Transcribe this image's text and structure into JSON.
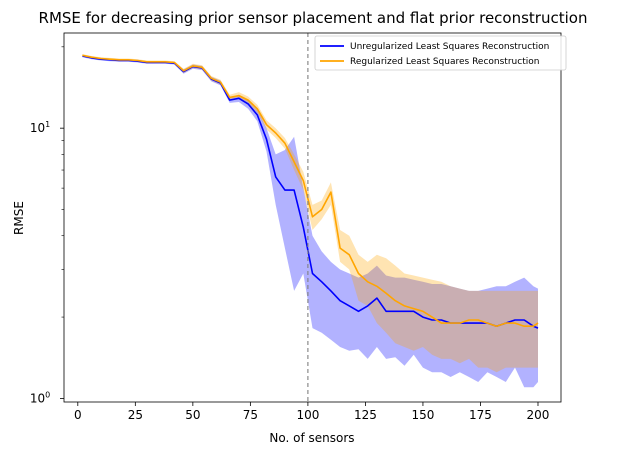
{
  "chart_data": {
    "type": "line",
    "title": "RMSE for decreasing prior sensor placement and flat prior reconstruction",
    "xlabel": "No. of sensors",
    "ylabel": "RMSE",
    "xlim": [
      -6,
      210
    ],
    "ylim": [
      0.97,
      22.5
    ],
    "yscale": "log",
    "x_ticks": [
      0,
      25,
      50,
      75,
      100,
      125,
      150,
      175,
      200
    ],
    "y_ticks": [
      {
        "value": 1,
        "label": "10",
        "exp": "0"
      },
      {
        "value": 10,
        "label": "10",
        "exp": "1"
      }
    ],
    "y_minor_ticks": [
      2,
      3,
      4,
      5,
      6,
      7,
      8,
      9,
      20
    ],
    "vline": {
      "x": 100,
      "color": "#808080",
      "style": "dashed"
    },
    "grid": false,
    "legend_position": "upper-right",
    "x": [
      2,
      6,
      10,
      14,
      18,
      22,
      26,
      30,
      34,
      38,
      42,
      46,
      50,
      54,
      58,
      62,
      66,
      70,
      74,
      78,
      82,
      86,
      90,
      94,
      98,
      102,
      106,
      110,
      114,
      118,
      122,
      126,
      130,
      134,
      138,
      142,
      146,
      150,
      154,
      158,
      162,
      166,
      170,
      174,
      178,
      182,
      186,
      190,
      194,
      198,
      200
    ],
    "series": [
      {
        "name": "Unregularized Least Squares Reconstruction",
        "color": "#0000ff",
        "values": [
          18.5,
          18.2,
          18.0,
          17.9,
          17.8,
          17.8,
          17.7,
          17.5,
          17.5,
          17.5,
          17.4,
          16.2,
          16.9,
          16.7,
          15.2,
          14.7,
          12.7,
          12.9,
          12.3,
          11.2,
          9.1,
          6.6,
          5.9,
          5.9,
          4.3,
          2.9,
          2.7,
          2.5,
          2.3,
          2.2,
          2.1,
          2.2,
          2.35,
          2.1,
          2.1,
          2.1,
          2.1,
          2.0,
          1.95,
          1.95,
          1.9,
          1.9,
          1.9,
          1.9,
          1.9,
          1.85,
          1.9,
          1.95,
          1.95,
          1.85,
          1.82
        ],
        "lower": [
          18.3,
          18.0,
          17.8,
          17.7,
          17.6,
          17.6,
          17.5,
          17.3,
          17.3,
          17.3,
          17.2,
          15.9,
          16.6,
          16.4,
          14.9,
          14.4,
          12.4,
          12.5,
          11.8,
          10.6,
          8.2,
          5.2,
          3.6,
          2.5,
          2.9,
          1.82,
          1.75,
          1.65,
          1.55,
          1.5,
          1.52,
          1.4,
          1.55,
          1.4,
          1.42,
          1.32,
          1.45,
          1.3,
          1.25,
          1.25,
          1.2,
          1.25,
          1.2,
          1.15,
          1.25,
          1.2,
          1.15,
          1.3,
          1.1,
          1.1,
          1.15
        ],
        "upper": [
          18.7,
          18.4,
          18.2,
          18.1,
          18.0,
          18.0,
          17.9,
          17.7,
          17.7,
          17.7,
          17.6,
          16.5,
          17.2,
          17.0,
          15.5,
          15.0,
          13.0,
          13.3,
          12.8,
          11.8,
          10.0,
          8.0,
          8.3,
          9.3,
          6.0,
          4.0,
          3.5,
          3.2,
          3.0,
          2.9,
          2.8,
          2.9,
          3.1,
          2.85,
          2.8,
          2.8,
          2.75,
          2.7,
          2.65,
          2.65,
          2.6,
          2.55,
          2.5,
          2.5,
          2.55,
          2.6,
          2.6,
          2.7,
          2.8,
          2.6,
          2.55
        ]
      },
      {
        "name": "Regularized Least Squares Reconstruction",
        "color": "#ffa500",
        "values": [
          18.6,
          18.3,
          18.1,
          18.0,
          17.9,
          17.9,
          17.8,
          17.6,
          17.6,
          17.6,
          17.5,
          16.3,
          17.0,
          16.8,
          15.3,
          14.8,
          13.0,
          13.2,
          12.7,
          11.8,
          10.3,
          9.6,
          8.8,
          7.5,
          6.4,
          4.7,
          5.0,
          5.8,
          3.6,
          3.4,
          2.9,
          2.7,
          2.6,
          2.45,
          2.3,
          2.2,
          2.15,
          2.1,
          2.0,
          1.9,
          1.9,
          1.9,
          1.95,
          1.95,
          1.9,
          1.85,
          1.9,
          1.9,
          1.85,
          1.85,
          1.9
        ],
        "lower": [
          18.4,
          18.1,
          17.9,
          17.8,
          17.7,
          17.7,
          17.6,
          17.4,
          17.4,
          17.4,
          17.3,
          16.0,
          16.7,
          16.5,
          15.0,
          14.5,
          12.7,
          12.9,
          12.3,
          11.4,
          9.9,
          9.2,
          8.4,
          7.0,
          5.9,
          4.2,
          4.6,
          5.2,
          3.2,
          3.0,
          2.3,
          2.2,
          1.9,
          1.75,
          1.6,
          1.55,
          1.5,
          1.55,
          1.45,
          1.4,
          1.4,
          1.35,
          1.4,
          1.3,
          1.3,
          1.25,
          1.3,
          1.3,
          1.3,
          1.3,
          1.3
        ],
        "upper": [
          18.8,
          18.5,
          18.3,
          18.2,
          18.1,
          18.1,
          18.0,
          17.8,
          17.8,
          17.8,
          17.7,
          16.6,
          17.3,
          17.1,
          15.6,
          15.1,
          13.3,
          13.6,
          13.1,
          12.2,
          10.7,
          10.0,
          9.2,
          8.0,
          6.9,
          5.2,
          5.4,
          6.3,
          4.2,
          4.0,
          3.4,
          3.2,
          3.4,
          3.3,
          3.1,
          2.9,
          2.85,
          2.8,
          2.75,
          2.7,
          2.6,
          2.55,
          2.5,
          2.5,
          2.5,
          2.5,
          2.5,
          2.5,
          2.5,
          2.5,
          2.5
        ]
      }
    ]
  }
}
